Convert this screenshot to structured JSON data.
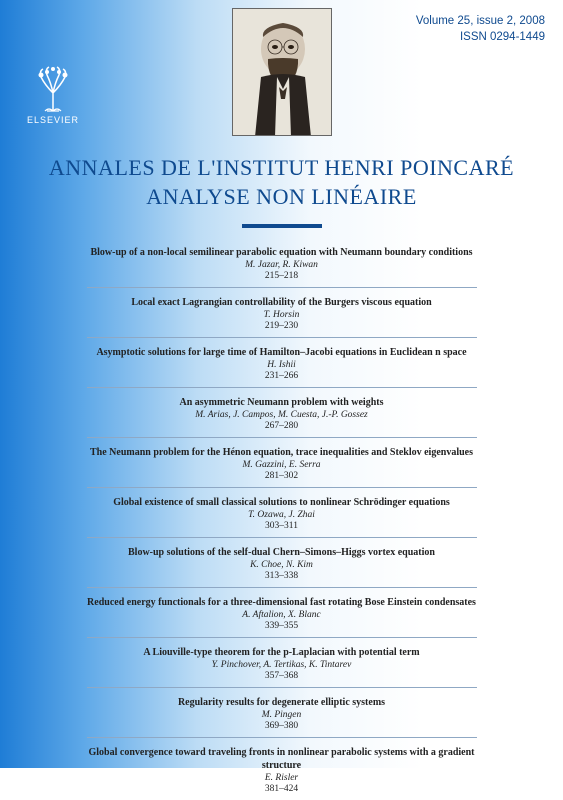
{
  "issue": {
    "volume_line": "Volume 25, issue 2, 2008",
    "issn_line": "ISSN 0294-1449"
  },
  "publisher": {
    "name": "ELSEVIER"
  },
  "journal": {
    "title_line1": "ANNALES DE L'INSTITUT HENRI POINCARÉ",
    "title_line2": "ANALYSE NON LINÉAIRE"
  },
  "colors": {
    "brand_blue": "#0f4a8f",
    "gradient_from": "#1f7dd6",
    "gradient_to": "#ffffff"
  },
  "toc": [
    {
      "title": "Blow-up of a non-local semilinear parabolic equation with Neumann boundary conditions",
      "authors": "M. Jazar, R. Kiwan",
      "pages": "215–218"
    },
    {
      "title": "Local exact Lagrangian controllability of the Burgers viscous equation",
      "authors": "T. Horsin",
      "pages": "219–230"
    },
    {
      "title": "Asymptotic solutions for large time of Hamilton–Jacobi equations in Euclidean n space",
      "authors": "H. Ishii",
      "pages": "231–266"
    },
    {
      "title": "An asymmetric Neumann problem with weights",
      "authors": "M. Arias, J. Campos, M. Cuesta, J.-P. Gossez",
      "pages": "267–280"
    },
    {
      "title": "The Neumann problem for the Hénon equation, trace inequalities and Steklov eigenvalues",
      "authors": "M. Gazzini, E. Serra",
      "pages": "281–302"
    },
    {
      "title": "Global existence of small classical solutions to nonlinear Schrödinger equations",
      "authors": "T. Ozawa, J. Zhai",
      "pages": "303–311"
    },
    {
      "title": "Blow-up solutions of the self-dual Chern–Simons–Higgs vortex equation",
      "authors": "K. Choe, N. Kim",
      "pages": "313–338"
    },
    {
      "title": "Reduced energy functionals for a three-dimensional fast rotating Bose Einstein condensates",
      "authors": "A. Aftalion, X. Blanc",
      "pages": "339–355"
    },
    {
      "title": "A Liouville-type theorem for the p-Laplacian with potential term",
      "authors": "Y. Pinchover, A. Tertikas, K. Tintarev",
      "pages": "357–368"
    },
    {
      "title": "Regularity results for degenerate elliptic systems",
      "authors": "M. Pingen",
      "pages": "369–380"
    },
    {
      "title": "Global convergence toward traveling fronts in nonlinear parabolic systems with a gradient structure",
      "authors": "E. Risler",
      "pages": "381–424"
    }
  ]
}
